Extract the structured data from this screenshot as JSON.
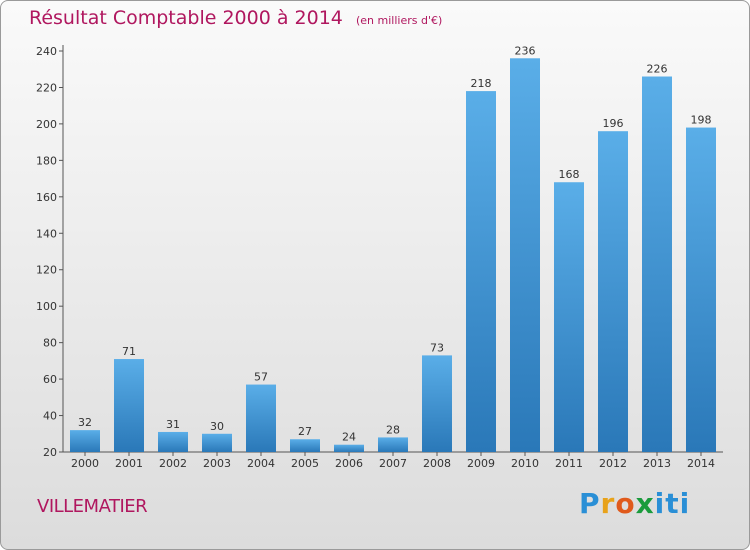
{
  "title": "Résultat Comptable 2000 à 2014",
  "subtitle": "(en milliers d'€)",
  "commune": "VILLEMATIER",
  "logo": {
    "letters": [
      "P",
      "r",
      "o",
      "x",
      "i",
      "t",
      "i"
    ],
    "colors": [
      "#2a8fd6",
      "#e8a21a",
      "#e05a1c",
      "#1a9b3c",
      "#2a8fd6",
      "#2a8fd6",
      "#2a8fd6"
    ]
  },
  "chart_data": {
    "type": "bar",
    "categories": [
      "2000",
      "2001",
      "2002",
      "2003",
      "2004",
      "2005",
      "2006",
      "2007",
      "2008",
      "2009",
      "2010",
      "2011",
      "2012",
      "2013",
      "2014"
    ],
    "values": [
      32,
      71,
      31,
      30,
      57,
      27,
      24,
      28,
      73,
      218,
      236,
      168,
      196,
      226,
      198
    ],
    "yticks": [
      20,
      40,
      60,
      80,
      100,
      120,
      140,
      160,
      180,
      200,
      220,
      240
    ],
    "ylim": [
      20,
      240
    ],
    "grid": false,
    "bar_color_top": "#5aaee8",
    "bar_color_bottom": "#2a78b8"
  }
}
